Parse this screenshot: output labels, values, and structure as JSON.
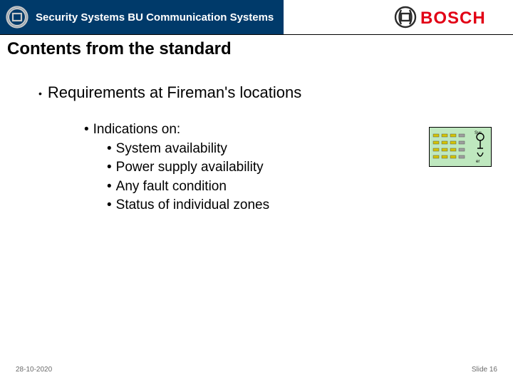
{
  "header": {
    "title": "Security Systems BU Communication Systems",
    "bar_bg": "#003a6a",
    "logo_text": "BOSCH",
    "logo_text_color": "#e20015",
    "anchor_circle_color": "#2b2b2b"
  },
  "content": {
    "heading": "Contents from the standard",
    "level1": "Requirements at Fireman's locations",
    "level2_intro": "Indications on:",
    "level3_items": [
      "System availability",
      "Power supply availability",
      "Any fault condition",
      "Status of individual zones"
    ]
  },
  "panel": {
    "width": 88,
    "height": 56,
    "bg": "#bfe8bf",
    "border": "#000000",
    "led_colors": [
      "#d4c400",
      "#d4c400",
      "#d4c400",
      "#9e9e9e"
    ],
    "led_rows": 4,
    "led_cols": 4,
    "label_top": "Sys",
    "label_bot": "er",
    "icon_color": "#000000"
  },
  "footer": {
    "date": "28-10-2020",
    "page_label": "Slide",
    "page_num": "16"
  }
}
